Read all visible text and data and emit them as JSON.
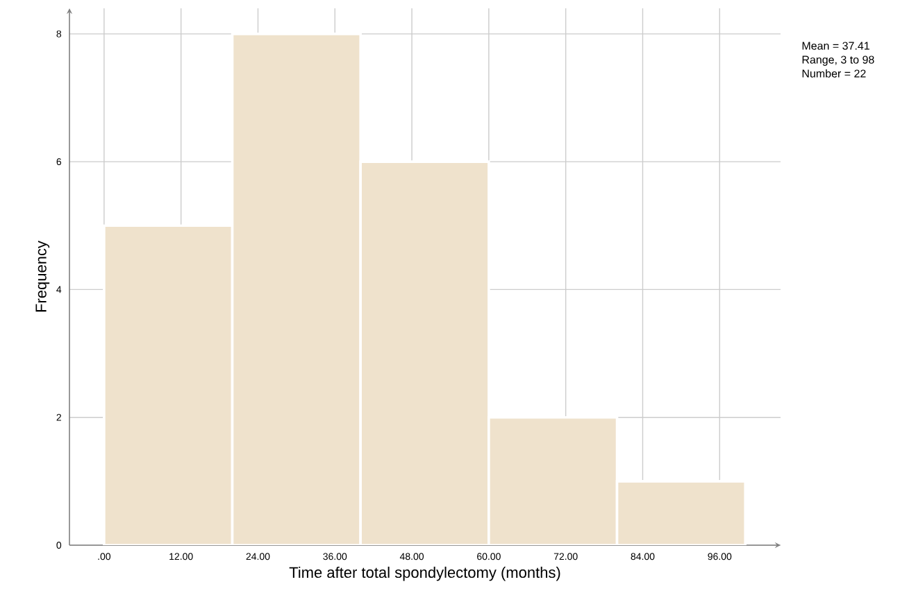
{
  "chart_data": {
    "type": "histogram",
    "xlabel": "Time after total spondylectomy (months)",
    "ylabel": "Frequency",
    "bins": [
      0,
      20,
      40,
      60,
      80,
      100
    ],
    "values": [
      5,
      8,
      6,
      2,
      1
    ],
    "color": "#efe2cc",
    "xlim": [
      -5.4,
      105.5
    ],
    "ylim": [
      0,
      8.4
    ],
    "xticks": [
      {
        "value": 0,
        "label": ".00"
      },
      {
        "value": 12,
        "label": "12.00"
      },
      {
        "value": 24,
        "label": "24.00"
      },
      {
        "value": 36,
        "label": "36.00"
      },
      {
        "value": 48,
        "label": "48.00"
      },
      {
        "value": 60,
        "label": "60.00"
      },
      {
        "value": 72,
        "label": "72.00"
      },
      {
        "value": 84,
        "label": "84.00"
      },
      {
        "value": 96,
        "label": "96.00"
      }
    ],
    "yticks": [
      0,
      2,
      4,
      6,
      8
    ],
    "grid": true,
    "annotations": [
      "Mean = 37.41",
      "Range, 3 to 98",
      "Number = 22"
    ]
  }
}
